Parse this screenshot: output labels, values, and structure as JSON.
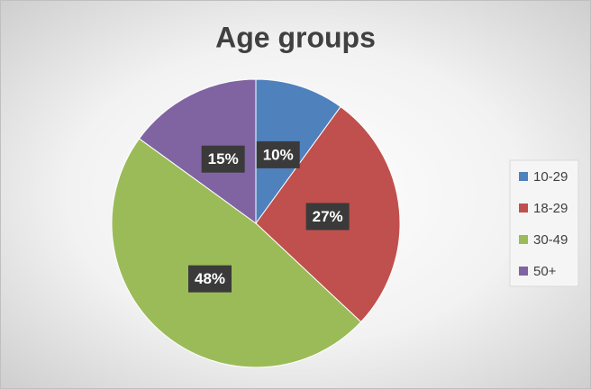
{
  "chart_data": {
    "type": "pie",
    "title": "Age groups",
    "categories": [
      "10-29",
      "18-29",
      "30-49",
      "50+"
    ],
    "values": [
      10,
      27,
      48,
      15
    ],
    "value_labels": [
      "10%",
      "27%",
      "48%",
      "15%"
    ],
    "colors": [
      "#4f81bd",
      "#c0504d",
      "#9bbb59",
      "#8064a2"
    ],
    "legend": "right"
  }
}
